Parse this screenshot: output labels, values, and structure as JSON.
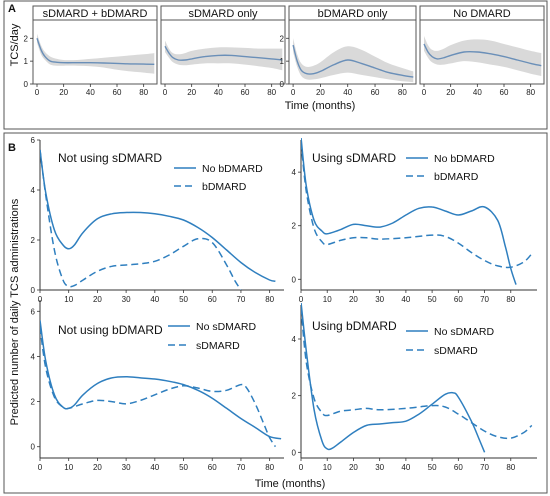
{
  "figure": {
    "panel_a_letter": "A",
    "panel_b_letter": "B",
    "panel_a_ylabel": "TCS/day",
    "panel_a_xlabel": "Time (months)",
    "panel_b_ylabel": "Predicted number of daily TCS administrations",
    "panel_b_xlabel": "Time (months)"
  },
  "colors": {
    "line": "#2f7fbf",
    "line_a": "#6a8fb8",
    "band": "#d9d9d9",
    "frame": "#555555",
    "axis": "#333333"
  },
  "chart_data": [
    {
      "type": "line",
      "title": "sDMARD + bDMARD",
      "x_ticks": [
        0,
        20,
        40,
        60,
        80
      ],
      "y_ticks": [
        0,
        1,
        2
      ],
      "xlim": [
        -3,
        90
      ],
      "ylim": [
        0,
        2.8
      ],
      "series": [
        {
          "x": [
            0,
            3,
            6,
            10,
            15,
            20,
            30,
            40,
            50,
            60,
            70,
            80,
            88
          ],
          "values": [
            2.0,
            1.5,
            1.2,
            1.0,
            0.95,
            0.93,
            0.93,
            0.93,
            0.92,
            0.9,
            0.88,
            0.87,
            0.86
          ],
          "upper": [
            2.2,
            1.7,
            1.4,
            1.2,
            1.1,
            1.05,
            1.05,
            1.1,
            1.15,
            1.2,
            1.25,
            1.3,
            1.35
          ],
          "lower": [
            1.8,
            1.3,
            1.05,
            0.85,
            0.8,
            0.8,
            0.8,
            0.78,
            0.72,
            0.62,
            0.55,
            0.5,
            0.45
          ]
        }
      ]
    },
    {
      "type": "line",
      "title": "sDMARD only",
      "x_ticks": [
        0,
        20,
        40,
        60,
        80
      ],
      "y_ticks": [],
      "xlim": [
        -3,
        90
      ],
      "ylim": [
        0,
        2.8
      ],
      "series": [
        {
          "x": [
            0,
            3,
            6,
            10,
            15,
            20,
            30,
            40,
            50,
            60,
            70,
            80,
            88
          ],
          "values": [
            1.65,
            1.35,
            1.15,
            1.05,
            1.05,
            1.1,
            1.2,
            1.25,
            1.25,
            1.2,
            1.15,
            1.1,
            1.05
          ],
          "upper": [
            1.9,
            1.55,
            1.35,
            1.3,
            1.35,
            1.45,
            1.55,
            1.6,
            1.6,
            1.58,
            1.55,
            1.55,
            1.55
          ],
          "lower": [
            1.4,
            1.15,
            0.95,
            0.85,
            0.82,
            0.85,
            0.9,
            0.9,
            0.9,
            0.85,
            0.78,
            0.7,
            0.6
          ]
        }
      ]
    },
    {
      "type": "line",
      "title": "bDMARD only",
      "x_ticks": [
        0,
        20,
        40,
        60,
        80
      ],
      "y_ticks": [
        0,
        1,
        2
      ],
      "xlim": [
        -3,
        90
      ],
      "ylim": [
        0,
        2.8
      ],
      "series": [
        {
          "x": [
            0,
            3,
            6,
            10,
            15,
            20,
            30,
            40,
            50,
            60,
            70,
            80,
            88
          ],
          "values": [
            1.7,
            1.0,
            0.6,
            0.45,
            0.45,
            0.55,
            0.85,
            1.05,
            0.9,
            0.7,
            0.5,
            0.38,
            0.3
          ],
          "upper": [
            2.0,
            1.3,
            0.9,
            0.75,
            0.8,
            0.95,
            1.4,
            1.65,
            1.5,
            1.2,
            0.9,
            0.7,
            0.55
          ],
          "lower": [
            1.4,
            0.75,
            0.35,
            0.2,
            0.2,
            0.25,
            0.4,
            0.5,
            0.4,
            0.3,
            0.2,
            0.12,
            0.08
          ]
        }
      ]
    },
    {
      "type": "line",
      "title": "No DMARD",
      "x_ticks": [
        0,
        20,
        40,
        60,
        80
      ],
      "y_ticks": [],
      "xlim": [
        -3,
        90
      ],
      "ylim": [
        0,
        2.8
      ],
      "series": [
        {
          "x": [
            0,
            3,
            6,
            10,
            15,
            20,
            30,
            40,
            50,
            60,
            70,
            80,
            88
          ],
          "values": [
            1.75,
            1.4,
            1.2,
            1.1,
            1.15,
            1.25,
            1.4,
            1.4,
            1.32,
            1.2,
            1.05,
            0.9,
            0.8
          ],
          "upper": [
            2.1,
            1.7,
            1.5,
            1.45,
            1.55,
            1.7,
            1.9,
            1.95,
            1.9,
            1.75,
            1.6,
            1.45,
            1.35
          ],
          "lower": [
            1.45,
            1.15,
            0.95,
            0.85,
            0.85,
            0.9,
            1.0,
            0.95,
            0.85,
            0.75,
            0.6,
            0.45,
            0.35
          ]
        }
      ]
    },
    {
      "type": "line",
      "title": "Not using sDMARD",
      "x_ticks": [
        0,
        10,
        20,
        30,
        40,
        50,
        60,
        70,
        80
      ],
      "y_ticks": [
        0,
        2,
        4,
        6
      ],
      "xlim": [
        0,
        85
      ],
      "ylim": [
        0,
        6
      ],
      "series": [
        {
          "name": "No bDMARD",
          "style": "solid",
          "x": [
            0,
            2,
            5,
            8,
            10,
            12,
            15,
            20,
            25,
            30,
            35,
            40,
            45,
            50,
            55,
            60,
            65,
            70,
            75,
            80,
            82
          ],
          "values": [
            5.6,
            3.9,
            2.4,
            1.8,
            1.65,
            1.8,
            2.3,
            2.85,
            3.05,
            3.1,
            3.1,
            3.05,
            2.95,
            2.8,
            2.5,
            2.1,
            1.6,
            1.1,
            0.7,
            0.4,
            0.35
          ]
        },
        {
          "name": "bDMARD",
          "style": "dashed",
          "x": [
            0,
            2,
            5,
            8,
            10,
            12,
            15,
            20,
            25,
            30,
            35,
            40,
            45,
            50,
            55,
            60,
            65,
            68,
            70
          ],
          "values": [
            5.6,
            3.8,
            1.6,
            0.4,
            0.15,
            0.18,
            0.4,
            0.75,
            0.95,
            1.0,
            1.05,
            1.15,
            1.4,
            1.75,
            2.05,
            1.9,
            1.0,
            0.35,
            0.0
          ]
        }
      ]
    },
    {
      "type": "line",
      "title": "Using sDMARD",
      "x_ticks": [
        0,
        10,
        20,
        30,
        40,
        50,
        60,
        70,
        80
      ],
      "y_ticks": [
        0,
        2,
        4
      ],
      "xlim": [
        0,
        90
      ],
      "ylim": [
        -0.4,
        5.2
      ],
      "series": [
        {
          "name": "No bDMARD",
          "style": "solid",
          "x": [
            0,
            2,
            5,
            8,
            10,
            15,
            20,
            25,
            30,
            35,
            40,
            45,
            50,
            55,
            60,
            65,
            70,
            75,
            78,
            80,
            82
          ],
          "values": [
            5.3,
            3.5,
            2.2,
            1.8,
            1.7,
            1.85,
            2.05,
            2.0,
            1.95,
            2.1,
            2.4,
            2.65,
            2.7,
            2.55,
            2.4,
            2.55,
            2.7,
            2.2,
            1.2,
            0.4,
            -0.2
          ]
        },
        {
          "name": "bDMARD",
          "style": "dashed",
          "x": [
            0,
            2,
            5,
            8,
            10,
            15,
            20,
            25,
            30,
            40,
            50,
            55,
            60,
            65,
            70,
            75,
            80,
            85,
            88
          ],
          "values": [
            5.1,
            3.3,
            1.9,
            1.4,
            1.3,
            1.45,
            1.55,
            1.55,
            1.5,
            1.55,
            1.65,
            1.6,
            1.35,
            1.0,
            0.7,
            0.5,
            0.45,
            0.65,
            0.95
          ]
        }
      ]
    },
    {
      "type": "line",
      "title": "Not using bDMARD",
      "x_ticks": [
        0,
        10,
        20,
        30,
        40,
        50,
        60,
        70,
        80
      ],
      "y_ticks": [
        0,
        2,
        4,
        6
      ],
      "xlim": [
        0,
        85
      ],
      "ylim": [
        -0.5,
        6.5
      ],
      "series": [
        {
          "name": "No sDMARD",
          "style": "solid",
          "x": [
            0,
            2,
            5,
            8,
            10,
            12,
            15,
            20,
            25,
            30,
            35,
            40,
            45,
            50,
            55,
            60,
            65,
            70,
            75,
            80,
            84
          ],
          "values": [
            5.6,
            3.8,
            2.3,
            1.75,
            1.7,
            1.85,
            2.3,
            2.8,
            3.05,
            3.1,
            3.05,
            3.0,
            2.9,
            2.75,
            2.5,
            2.15,
            1.7,
            1.25,
            0.85,
            0.45,
            0.35
          ]
        },
        {
          "name": "sDMARD",
          "style": "dashed",
          "x": [
            0,
            2,
            5,
            8,
            10,
            15,
            20,
            25,
            30,
            35,
            40,
            45,
            50,
            55,
            60,
            65,
            70,
            72,
            75,
            78,
            80,
            82
          ],
          "values": [
            5.3,
            3.5,
            2.2,
            1.75,
            1.7,
            1.9,
            2.05,
            2.0,
            1.9,
            2.05,
            2.3,
            2.55,
            2.7,
            2.6,
            2.45,
            2.5,
            2.75,
            2.6,
            1.9,
            1.0,
            0.4,
            0.0
          ]
        }
      ]
    },
    {
      "type": "line",
      "title": "Using bDMARD",
      "x_ticks": [
        0,
        10,
        20,
        30,
        40,
        50,
        60,
        70,
        80
      ],
      "y_ticks": [
        0,
        2,
        4
      ],
      "xlim": [
        0,
        90
      ],
      "ylim": [
        -0.2,
        5.2
      ],
      "series": [
        {
          "name": "No sDMARD",
          "style": "solid",
          "x": [
            0,
            2,
            5,
            8,
            10,
            12,
            15,
            20,
            25,
            30,
            35,
            40,
            45,
            50,
            55,
            58,
            60,
            65,
            68,
            70
          ],
          "values": [
            5.3,
            3.6,
            1.5,
            0.4,
            0.12,
            0.15,
            0.35,
            0.7,
            0.95,
            1.0,
            1.05,
            1.1,
            1.35,
            1.7,
            2.05,
            2.1,
            1.95,
            1.1,
            0.45,
            0.0
          ]
        },
        {
          "name": "sDMARD",
          "style": "dashed",
          "x": [
            0,
            2,
            5,
            8,
            10,
            15,
            20,
            25,
            30,
            40,
            50,
            55,
            60,
            65,
            70,
            75,
            80,
            85,
            88
          ],
          "values": [
            5.1,
            3.2,
            1.9,
            1.4,
            1.3,
            1.45,
            1.5,
            1.55,
            1.5,
            1.55,
            1.65,
            1.6,
            1.35,
            1.05,
            0.75,
            0.55,
            0.5,
            0.7,
            0.95
          ]
        }
      ]
    }
  ]
}
